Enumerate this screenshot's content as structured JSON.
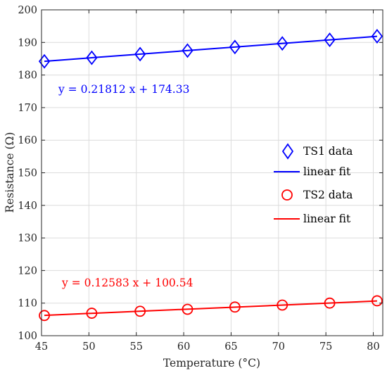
{
  "chart_data": {
    "type": "scatter",
    "title": "",
    "xlabel": "Temperature (°C)",
    "ylabel": "Resistance (Ω)",
    "xlim": [
      45,
      81
    ],
    "ylim": [
      100,
      200
    ],
    "xticks": [
      "45",
      "50",
      "55",
      "60",
      "65",
      "70",
      "75",
      "80"
    ],
    "yticks": [
      "100",
      "110",
      "120",
      "130",
      "140",
      "150",
      "160",
      "170",
      "180",
      "190",
      "200"
    ],
    "grid": true,
    "legend_position": "right",
    "series": [
      {
        "name": "TS1 data",
        "marker": "diamond",
        "color": "#0000ff",
        "x": [
          45.3,
          50.3,
          55.4,
          60.4,
          65.4,
          70.4,
          75.4,
          80.4
        ],
        "y": [
          184.2,
          185.3,
          186.4,
          187.5,
          188.6,
          189.7,
          190.8,
          191.9
        ]
      },
      {
        "name": "linear fit",
        "type": "line",
        "color": "#0000ff",
        "slope": 0.21812,
        "intercept": 174.33
      },
      {
        "name": "TS2 data",
        "marker": "circle",
        "color": "#ff0000",
        "x": [
          45.3,
          50.3,
          55.4,
          60.4,
          65.4,
          70.4,
          75.4,
          80.4
        ],
        "y": [
          106.2,
          106.9,
          107.5,
          108.1,
          108.8,
          109.4,
          110.0,
          110.7
        ]
      },
      {
        "name": "linear fit",
        "type": "line",
        "color": "#ff0000",
        "slope": 0.12583,
        "intercept": 100.54
      }
    ],
    "annotations": [
      {
        "text": "y = 0.21812 x + 174.33",
        "color": "#0000ff"
      },
      {
        "text": "y = 0.12583 x + 100.54",
        "color": "#ff0000"
      }
    ]
  }
}
